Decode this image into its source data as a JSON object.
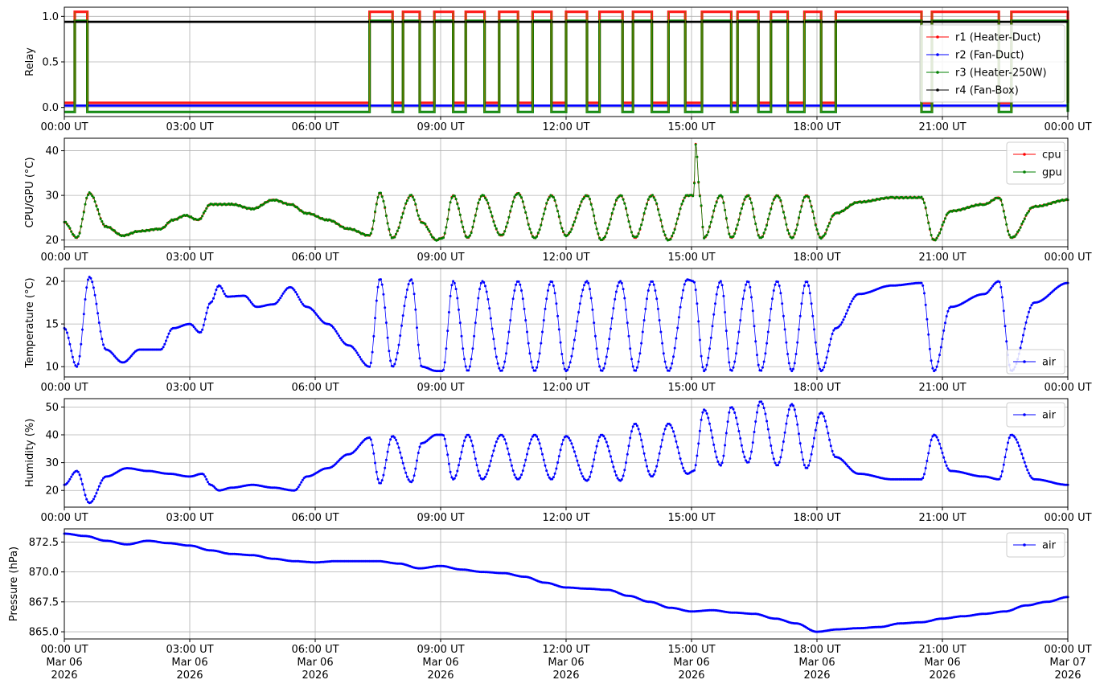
{
  "colors": {
    "red": "#ff0000",
    "blue": "#0000ff",
    "green": "#008000",
    "black": "#000000",
    "olive": "#808000"
  },
  "chart_data": [
    {
      "type": "line",
      "ylabel": "Relay",
      "ylim": [
        -0.1,
        1.1
      ],
      "yticks": [
        0.0,
        0.5,
        1.0
      ],
      "ytick_labels": [
        "0.0",
        "0.5",
        "1.0"
      ],
      "xlim_hours": [
        0,
        24
      ],
      "xticks": [
        "00:00 UT",
        "03:00 UT",
        "06:00 UT",
        "09:00 UT",
        "12:00 UT",
        "15:00 UT",
        "18:00 UT",
        "21:00 UT",
        "00:00 UT"
      ],
      "grid": true,
      "legend_position": "center-right",
      "series": [
        {
          "name": "r1 (Heater-Duct)",
          "color": "#ff0000",
          "offset": 0.05,
          "kind": "step"
        },
        {
          "name": "r2 (Fan-Duct)",
          "color": "#0000ff",
          "constant": 0.02
        },
        {
          "name": "r3 (Heater-250W)",
          "color": "#008000",
          "offset": -0.05,
          "kind": "step"
        },
        {
          "name": "r4 (Fan-Box)",
          "color": "#000000",
          "constant": 0.94
        }
      ],
      "on_intervals_hours": [
        [
          0.25,
          0.55
        ],
        [
          7.3,
          7.85
        ],
        [
          8.1,
          8.5
        ],
        [
          8.85,
          9.3
        ],
        [
          9.6,
          10.05
        ],
        [
          10.4,
          10.85
        ],
        [
          11.2,
          11.65
        ],
        [
          12.0,
          12.5
        ],
        [
          12.8,
          13.35
        ],
        [
          13.6,
          14.05
        ],
        [
          14.45,
          14.85
        ],
        [
          15.25,
          15.95
        ],
        [
          16.1,
          16.6
        ],
        [
          16.9,
          17.3
        ],
        [
          17.7,
          18.1
        ],
        [
          18.45,
          20.5
        ],
        [
          20.75,
          22.35
        ],
        [
          22.65,
          24.0
        ]
      ]
    },
    {
      "type": "line",
      "ylabel": "CPU/GPU (°C)",
      "ylim": [
        18.5,
        42.8
      ],
      "yticks": [
        20,
        30,
        40
      ],
      "ytick_labels": [
        "20",
        "30",
        "40"
      ],
      "xlim_hours": [
        0,
        24
      ],
      "xticks": [
        "00:00 UT",
        "03:00 UT",
        "06:00 UT",
        "09:00 UT",
        "12:00 UT",
        "15:00 UT",
        "18:00 UT",
        "21:00 UT",
        "00:00 UT"
      ],
      "grid": true,
      "legend_position": "top-right",
      "series": [
        {
          "name": "cpu",
          "color": "#ff0000"
        },
        {
          "name": "gpu",
          "color": "#008000"
        }
      ],
      "x": [
        0,
        0.3,
        0.6,
        1.0,
        1.4,
        1.8,
        2.3,
        2.6,
        2.9,
        3.2,
        3.5,
        4.0,
        4.5,
        5.0,
        5.4,
        5.8,
        6.3,
        6.8,
        7.3,
        7.55,
        7.85,
        8.3,
        8.55,
        8.9,
        9.05,
        9.3,
        9.65,
        10.0,
        10.45,
        10.85,
        11.25,
        11.65,
        12.0,
        12.5,
        12.85,
        13.3,
        13.65,
        14.05,
        14.45,
        14.9,
        15.05,
        15.1,
        15.2,
        15.3,
        15.7,
        15.95,
        16.35,
        16.65,
        17.05,
        17.4,
        17.75,
        18.1,
        18.45,
        19.0,
        19.8,
        20.5,
        20.8,
        21.2,
        22.0,
        22.35,
        22.65,
        23.2,
        24.0
      ],
      "values": [
        24,
        20.5,
        30.5,
        23,
        21,
        22,
        22.5,
        24.5,
        25.5,
        24.5,
        28,
        28,
        27,
        29,
        28,
        26,
        24.5,
        22.5,
        21,
        30.5,
        20.5,
        30,
        24,
        20,
        20.5,
        30,
        20.5,
        30,
        21,
        30.5,
        20.5,
        30,
        21,
        30,
        20,
        30,
        20.5,
        30,
        20,
        30,
        30,
        41.5,
        30,
        20.5,
        30,
        20.5,
        30,
        20.5,
        30,
        20.5,
        30,
        20.5,
        26,
        28.5,
        29.5,
        29.5,
        20,
        26.5,
        28,
        29.5,
        20.5,
        27.5,
        29
      ]
    },
    {
      "type": "line",
      "ylabel": "Temperature (°C)",
      "ylim": [
        8.8,
        21.5
      ],
      "yticks": [
        10,
        15,
        20
      ],
      "ytick_labels": [
        "10",
        "15",
        "20"
      ],
      "xlim_hours": [
        0,
        24
      ],
      "xticks": [
        "00:00 UT",
        "03:00 UT",
        "06:00 UT",
        "09:00 UT",
        "12:00 UT",
        "15:00 UT",
        "18:00 UT",
        "21:00 UT",
        "00:00 UT"
      ],
      "grid": true,
      "legend_position": "bottom-right",
      "series": [
        {
          "name": "air",
          "color": "#0000ff"
        }
      ],
      "x": [
        0,
        0.3,
        0.6,
        1.0,
        1.4,
        1.8,
        2.3,
        2.6,
        3.0,
        3.25,
        3.5,
        3.7,
        3.9,
        4.3,
        4.6,
        5.0,
        5.4,
        5.8,
        6.3,
        6.8,
        7.3,
        7.55,
        7.85,
        8.3,
        8.55,
        8.9,
        9.05,
        9.3,
        9.65,
        10.0,
        10.45,
        10.85,
        11.25,
        11.65,
        12.0,
        12.5,
        12.85,
        13.3,
        13.65,
        14.05,
        14.45,
        14.9,
        15.05,
        15.3,
        15.7,
        15.95,
        16.35,
        16.65,
        17.05,
        17.4,
        17.75,
        18.1,
        18.45,
        19.0,
        19.8,
        20.5,
        20.8,
        21.2,
        22.0,
        22.35,
        22.65,
        23.2,
        24.0
      ],
      "values": [
        14.5,
        10,
        20.5,
        12,
        10.5,
        12,
        12,
        14.5,
        15,
        14,
        17.5,
        19.5,
        18.2,
        18.3,
        17,
        17.3,
        19.3,
        17,
        15,
        12.5,
        10,
        20.3,
        10,
        20.2,
        10,
        9.5,
        9.5,
        20,
        9.5,
        20,
        9.5,
        20,
        9.5,
        20,
        9.5,
        20,
        9.5,
        20,
        9.5,
        20,
        9.5,
        20.2,
        20,
        9.5,
        20,
        9.5,
        20,
        9.5,
        20,
        9.5,
        20,
        9.5,
        14.5,
        18.5,
        19.5,
        19.8,
        9.5,
        17,
        18.5,
        20,
        9.5,
        17.5,
        19.8
      ]
    },
    {
      "type": "line",
      "ylabel": "Humidity (%)",
      "ylim": [
        14,
        53
      ],
      "yticks": [
        20,
        30,
        40,
        50
      ],
      "ytick_labels": [
        "20",
        "30",
        "40",
        "50"
      ],
      "xlim_hours": [
        0,
        24
      ],
      "xticks": [
        "00:00 UT",
        "03:00 UT",
        "06:00 UT",
        "09:00 UT",
        "12:00 UT",
        "15:00 UT",
        "18:00 UT",
        "21:00 UT",
        "00:00 UT"
      ],
      "grid": true,
      "legend_position": "top-right",
      "series": [
        {
          "name": "air",
          "color": "#0000ff"
        }
      ],
      "x": [
        0,
        0.3,
        0.6,
        1.0,
        1.5,
        2.0,
        2.5,
        3.0,
        3.3,
        3.5,
        3.7,
        4.0,
        4.5,
        5.0,
        5.5,
        5.8,
        6.3,
        6.8,
        7.3,
        7.55,
        7.85,
        8.3,
        8.55,
        8.9,
        9.05,
        9.3,
        9.65,
        10.0,
        10.45,
        10.85,
        11.25,
        11.65,
        12.0,
        12.5,
        12.85,
        13.3,
        13.65,
        14.05,
        14.45,
        14.9,
        15.05,
        15.3,
        15.7,
        15.95,
        16.35,
        16.65,
        17.05,
        17.4,
        17.75,
        18.1,
        18.45,
        19.0,
        19.8,
        20.5,
        20.8,
        21.2,
        22.0,
        22.35,
        22.65,
        23.2,
        24.0
      ],
      "values": [
        22,
        27,
        15.5,
        25,
        28,
        27,
        26,
        25,
        26,
        22,
        20,
        21,
        22,
        21,
        20,
        25,
        28,
        33,
        39,
        22.5,
        39.5,
        23,
        37,
        40,
        40,
        24,
        40,
        24,
        40,
        24,
        40,
        24,
        39.5,
        23.5,
        40,
        23.5,
        44,
        25,
        44,
        26,
        27,
        49,
        29,
        50,
        30,
        52,
        29,
        51,
        28,
        48,
        32,
        26,
        24,
        24,
        40,
        27,
        25,
        24,
        40,
        24,
        22
      ]
    },
    {
      "type": "line",
      "ylabel": "Pressure (hPa)",
      "ylim": [
        864.4,
        873.6
      ],
      "yticks": [
        865.0,
        867.5,
        870.0,
        872.5
      ],
      "ytick_labels": [
        "865.0",
        "867.5",
        "870.0",
        "872.5"
      ],
      "xlim_hours": [
        0,
        24
      ],
      "xticks": [
        "00:00 UT",
        "03:00 UT",
        "06:00 UT",
        "09:00 UT",
        "12:00 UT",
        "15:00 UT",
        "18:00 UT",
        "21:00 UT",
        "00:00 UT"
      ],
      "xtick_dates": [
        "Mar 06",
        "Mar 06",
        "Mar 06",
        "Mar 06",
        "Mar 06",
        "Mar 06",
        "Mar 06",
        "Mar 06",
        "Mar 07"
      ],
      "xtick_years": [
        "2026",
        "2026",
        "2026",
        "2026",
        "2026",
        "2026",
        "2026",
        "2026",
        "2026"
      ],
      "grid": true,
      "legend_position": "top-right",
      "series": [
        {
          "name": "air",
          "color": "#0000ff"
        }
      ],
      "x": [
        0,
        0.5,
        1.0,
        1.5,
        2.0,
        2.5,
        3.0,
        3.5,
        4.0,
        4.5,
        5.0,
        5.5,
        6.0,
        6.5,
        7.0,
        7.5,
        8.0,
        8.5,
        9.0,
        9.5,
        10.0,
        10.5,
        11.0,
        11.5,
        12.0,
        12.5,
        13.0,
        13.5,
        14.0,
        14.5,
        15.0,
        15.5,
        16.0,
        16.5,
        17.0,
        17.5,
        18.0,
        18.5,
        19.0,
        19.5,
        20.0,
        20.5,
        21.0,
        21.5,
        22.0,
        22.5,
        23.0,
        23.5,
        24.0
      ],
      "values": [
        873.2,
        873.0,
        872.6,
        872.3,
        872.6,
        872.4,
        872.2,
        871.8,
        871.5,
        871.4,
        871.1,
        870.9,
        870.8,
        870.9,
        870.9,
        870.9,
        870.7,
        870.3,
        870.5,
        870.2,
        870.0,
        869.9,
        869.6,
        869.1,
        868.7,
        868.6,
        868.5,
        868.0,
        867.5,
        867.0,
        866.7,
        866.8,
        866.6,
        866.5,
        866.1,
        865.7,
        865.0,
        865.2,
        865.3,
        865.4,
        865.7,
        865.8,
        866.1,
        866.3,
        866.5,
        866.7,
        867.2,
        867.5,
        867.9
      ]
    }
  ]
}
